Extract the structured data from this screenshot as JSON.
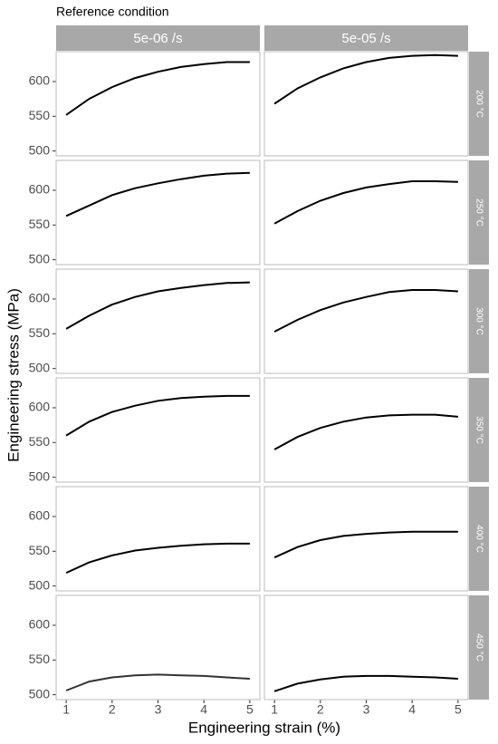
{
  "chart_data": {
    "type": "line",
    "title": "Reference condition",
    "x_label": "Engineering strain (%)",
    "y_label": "Engineering stress (MPa)",
    "xlim": [
      0.78,
      5.22
    ],
    "xticks": [
      1,
      2,
      3,
      4,
      5
    ],
    "ylim": [
      493,
      643
    ],
    "yticks": [
      500,
      550,
      600
    ],
    "x": [
      1,
      1.5,
      2,
      2.5,
      3,
      3.5,
      4,
      4.5,
      5
    ],
    "columns": [
      "5e-06 /s",
      "5e-05 /s"
    ],
    "rows": [
      {
        "label": "200 °C",
        "series": [
          {
            "color": "#000000",
            "values": [
              552,
              575,
              592,
              605,
              614,
              621,
              625,
              628,
              628
            ]
          },
          {
            "color": "#000000",
            "values": [
              568,
              590,
              606,
              619,
              628,
              634,
              637,
              638,
              637
            ]
          }
        ]
      },
      {
        "label": "250 °C",
        "series": [
          {
            "color": "#000000",
            "values": [
              563,
              578,
              593,
              603,
              610,
              616,
              621,
              624,
              625
            ]
          },
          {
            "color": "#000000",
            "values": [
              552,
              570,
              585,
              596,
              604,
              609,
              613,
              613,
              612
            ]
          }
        ]
      },
      {
        "label": "300 °C",
        "series": [
          {
            "color": "#000000",
            "values": [
              557,
              576,
              592,
              603,
              611,
              616,
              620,
              623,
              624
            ]
          },
          {
            "color": "#000000",
            "values": [
              553,
              570,
              584,
              595,
              603,
              610,
              613,
              613,
              611
            ]
          }
        ]
      },
      {
        "label": "350 °C",
        "series": [
          {
            "color": "#000000",
            "values": [
              560,
              580,
              594,
              603,
              610,
              614,
              616,
              617,
              617
            ]
          },
          {
            "color": "#000000",
            "values": [
              540,
              558,
              571,
              580,
              586,
              589,
              590,
              590,
              587
            ]
          }
        ]
      },
      {
        "label": "400 °C",
        "series": [
          {
            "color": "#000000",
            "values": [
              519,
              534,
              544,
              551,
              555,
              558,
              560,
              561,
              561
            ]
          },
          {
            "color": "#000000",
            "values": [
              541,
              556,
              566,
              572,
              575,
              577,
              578,
              578,
              578
            ]
          }
        ]
      },
      {
        "label": "450 °C",
        "series": [
          {
            "color": "#333333",
            "values": [
              506,
              519,
              525,
              528,
              529,
              528,
              527,
              525,
              523
            ]
          },
          {
            "color": "#000000",
            "values": [
              505,
              516,
              522,
              526,
              527,
              527,
              526,
              525,
              523
            ]
          }
        ]
      }
    ]
  }
}
